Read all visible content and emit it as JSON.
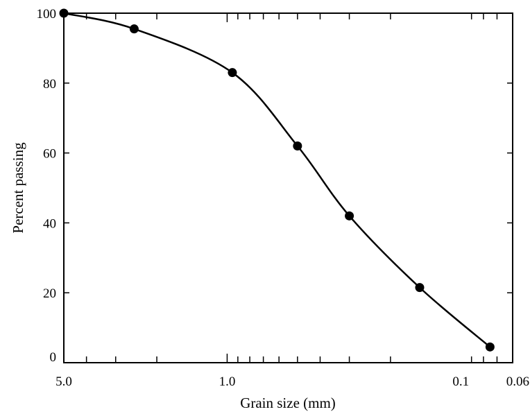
{
  "chart_data": {
    "type": "scatter",
    "title": "",
    "xlabel": "Grain size (mm)",
    "ylabel": "Percent passing",
    "xscale": "log",
    "x_direction": "decreasing",
    "xlim": [
      5.0,
      0.06
    ],
    "ylim": [
      0,
      100
    ],
    "x_tick_values": [
      5.0,
      1.0,
      0.1,
      0.06
    ],
    "x_tick_labels": [
      "5.0",
      "1.0",
      "0.1",
      "0.06"
    ],
    "y_tick_values": [
      0,
      20,
      40,
      60,
      80,
      100
    ],
    "y_tick_labels": [
      "0",
      "20",
      "40",
      "60",
      "80",
      "100"
    ],
    "grid": false,
    "legend": "none",
    "series": [
      {
        "x": [
          5.0,
          2.5,
          0.95,
          0.5,
          0.3,
          0.15,
          0.075
        ],
        "y": [
          100,
          95.5,
          83,
          62,
          42,
          21.5,
          4.5
        ],
        "marker": "filled-circle",
        "fit_curve": "smooth"
      }
    ],
    "colors": {
      "line": "#000000",
      "marker": "#000000"
    }
  }
}
